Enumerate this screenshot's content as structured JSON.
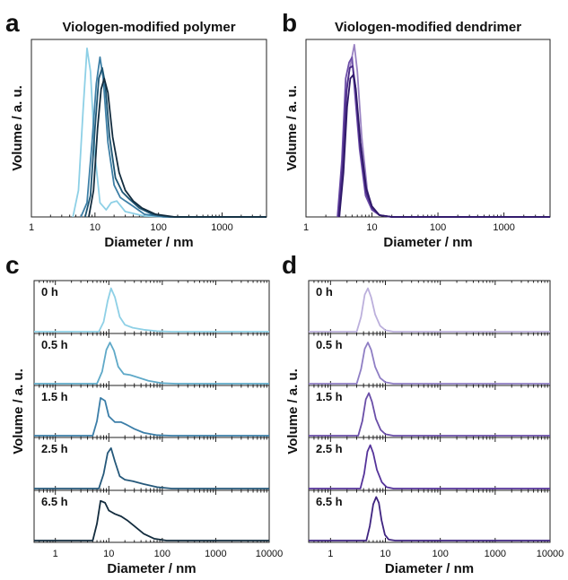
{
  "chart_data": [
    {
      "panel": "a",
      "type": "line",
      "title": "Viologen-modified polymer",
      "xlabel": "Diameter / nm",
      "ylabel": "Volume / a. u.",
      "xscale": "log",
      "xlim": [
        1,
        5000
      ],
      "xticks": [
        "1",
        "10",
        "100",
        "1000"
      ],
      "ylim": [
        0,
        1
      ],
      "series": [
        {
          "color": "#8ed0e6",
          "x": [
            4.5,
            5.5,
            6.5,
            7.5,
            8.5,
            10,
            12,
            15,
            18,
            22,
            30,
            60,
            200,
            5000
          ],
          "y": [
            0,
            0.15,
            0.6,
            0.95,
            0.82,
            0.35,
            0.08,
            0.04,
            0.08,
            0.09,
            0.03,
            0.005,
            0,
            0
          ]
        },
        {
          "color": "#3d7fa6",
          "x": [
            6,
            7.5,
            9,
            10.5,
            12,
            13.5,
            16,
            20,
            25,
            30,
            40,
            60,
            120,
            5000
          ],
          "y": [
            0,
            0.08,
            0.42,
            0.75,
            0.9,
            0.78,
            0.42,
            0.18,
            0.11,
            0.09,
            0.06,
            0.015,
            0,
            0
          ]
        },
        {
          "color": "#1e5573",
          "x": [
            7,
            8.5,
            10,
            11.5,
            13,
            14.5,
            17,
            21,
            27,
            35,
            50,
            80,
            150,
            5000
          ],
          "y": [
            0,
            0.12,
            0.5,
            0.78,
            0.84,
            0.75,
            0.45,
            0.22,
            0.14,
            0.1,
            0.05,
            0.015,
            0,
            0
          ]
        },
        {
          "color": "#132c3e",
          "x": [
            8,
            9.5,
            11,
            12.5,
            14,
            16,
            19,
            24,
            30,
            40,
            55,
            90,
            180,
            5000
          ],
          "y": [
            0,
            0.15,
            0.5,
            0.72,
            0.78,
            0.7,
            0.45,
            0.25,
            0.15,
            0.09,
            0.05,
            0.015,
            0,
            0
          ]
        }
      ]
    },
    {
      "panel": "b",
      "type": "line",
      "title": "Viologen-modified dendrimer",
      "xlabel": "Diameter / nm",
      "ylabel": "Volume / a. u.",
      "xscale": "log",
      "xlim": [
        1,
        5000
      ],
      "xticks": [
        "1",
        "10",
        "100",
        "1000"
      ],
      "ylim": [
        0,
        1
      ],
      "series": [
        {
          "color": "#9a83c3",
          "x": [
            3.2,
            3.7,
            4.2,
            4.8,
            5.4,
            6,
            7,
            8.5,
            10,
            13,
            20,
            5000
          ],
          "y": [
            0,
            0.35,
            0.75,
            0.87,
            0.97,
            0.82,
            0.45,
            0.15,
            0.05,
            0.01,
            0,
            0
          ]
        },
        {
          "color": "#6d4fa8",
          "x": [
            3,
            3.5,
            4,
            4.5,
            5,
            5.5,
            6.5,
            8,
            10,
            13,
            20,
            5000
          ],
          "y": [
            0,
            0.32,
            0.78,
            0.87,
            0.9,
            0.7,
            0.38,
            0.12,
            0.04,
            0.01,
            0,
            0
          ]
        },
        {
          "color": "#4a2b88",
          "x": [
            3.1,
            3.6,
            4.1,
            4.6,
            5.1,
            5.6,
            6.6,
            8.1,
            10,
            13,
            20,
            5000
          ],
          "y": [
            0,
            0.3,
            0.7,
            0.84,
            0.85,
            0.74,
            0.4,
            0.14,
            0.05,
            0.01,
            0,
            0
          ]
        },
        {
          "color": "#2e1868",
          "x": [
            3.2,
            3.7,
            4.2,
            4.7,
            5.2,
            5.7,
            6.7,
            8.2,
            10,
            13,
            20,
            5000
          ],
          "y": [
            0,
            0.25,
            0.62,
            0.78,
            0.8,
            0.72,
            0.42,
            0.16,
            0.06,
            0.01,
            0,
            0
          ]
        }
      ]
    },
    {
      "panel": "c",
      "type": "line",
      "xlabel": "Diameter / nm",
      "ylabel": "Volume / a. u.",
      "xscale": "log",
      "xlim": [
        0.4,
        10000
      ],
      "xticks": [
        "1",
        "10",
        "100",
        "1000",
        "10000"
      ],
      "ylim": [
        0,
        1
      ],
      "series": [
        {
          "name": "0 h",
          "color": "#8ed0e6",
          "x": [
            0.4,
            6.5,
            8,
            9.5,
            11,
            13,
            16,
            20,
            28,
            45,
            80,
            150,
            10000
          ],
          "y": [
            0,
            0,
            0.2,
            0.62,
            0.88,
            0.7,
            0.3,
            0.14,
            0.08,
            0.04,
            0.01,
            0,
            0
          ]
        },
        {
          "name": "0.5 h",
          "color": "#5fa9c8",
          "x": [
            0.4,
            6,
            7.5,
            9,
            10.5,
            12.5,
            15,
            19,
            25,
            35,
            55,
            100,
            180,
            10000
          ],
          "y": [
            0,
            0,
            0.25,
            0.7,
            0.85,
            0.68,
            0.35,
            0.2,
            0.18,
            0.13,
            0.06,
            0.01,
            0,
            0
          ]
        },
        {
          "name": "1.5 h",
          "color": "#3b7ea8",
          "x": [
            0.4,
            5,
            6,
            7,
            8.5,
            10,
            13,
            17,
            22,
            30,
            45,
            80,
            150,
            10000
          ],
          "y": [
            0,
            0,
            0.3,
            0.78,
            0.72,
            0.4,
            0.28,
            0.28,
            0.22,
            0.14,
            0.06,
            0.01,
            0,
            0
          ]
        },
        {
          "name": "2.5 h",
          "color": "#25587a",
          "x": [
            0.4,
            6.5,
            8,
            9.5,
            11,
            13,
            16,
            20,
            28,
            45,
            80,
            150,
            10000
          ],
          "y": [
            0,
            0,
            0.3,
            0.72,
            0.82,
            0.55,
            0.25,
            0.18,
            0.15,
            0.09,
            0.03,
            0,
            0
          ]
        },
        {
          "name": "6.5 h",
          "color": "#132c3e",
          "x": [
            0.4,
            5,
            6,
            7,
            8.5,
            10,
            13,
            17,
            22,
            30,
            45,
            70,
            120,
            10000
          ],
          "y": [
            0,
            0,
            0.35,
            0.82,
            0.78,
            0.62,
            0.55,
            0.5,
            0.42,
            0.3,
            0.14,
            0.04,
            0,
            0
          ]
        }
      ]
    },
    {
      "panel": "d",
      "type": "line",
      "xlabel": "Diameter / nm",
      "ylabel": "Volume / a. u.",
      "xscale": "log",
      "xlim": [
        0.4,
        10000
      ],
      "xticks": [
        "1",
        "10",
        "100",
        "1000",
        "10000"
      ],
      "ylim": [
        0,
        1
      ],
      "series": [
        {
          "name": "0 h",
          "color": "#bcb0dc",
          "x": [
            0.4,
            3,
            3.6,
            4.2,
            4.8,
            5.5,
            6.5,
            8,
            10,
            14,
            10000
          ],
          "y": [
            0,
            0,
            0.3,
            0.75,
            0.88,
            0.7,
            0.35,
            0.12,
            0.03,
            0,
            0
          ]
        },
        {
          "name": "0.5 h",
          "color": "#8f7ec4",
          "x": [
            0.4,
            3,
            3.6,
            4.2,
            4.8,
            5.5,
            6.5,
            8,
            10,
            14,
            10000
          ],
          "y": [
            0,
            0,
            0.3,
            0.72,
            0.85,
            0.7,
            0.35,
            0.12,
            0.03,
            0,
            0
          ]
        },
        {
          "name": "1.5 h",
          "color": "#6a4ea8",
          "x": [
            0.4,
            3.2,
            3.8,
            4.4,
            5,
            5.7,
            6.7,
            8.2,
            10,
            14,
            10000
          ],
          "y": [
            0,
            0,
            0.3,
            0.75,
            0.88,
            0.7,
            0.35,
            0.12,
            0.03,
            0,
            0
          ]
        },
        {
          "name": "2.5 h",
          "color": "#55339a",
          "x": [
            0.4,
            3.5,
            4.1,
            4.7,
            5.3,
            6,
            7,
            8.6,
            10.5,
            14,
            10000
          ],
          "y": [
            0,
            0,
            0.3,
            0.75,
            0.88,
            0.72,
            0.38,
            0.13,
            0.03,
            0,
            0
          ]
        },
        {
          "name": "6.5 h",
          "color": "#3f2480",
          "x": [
            0.4,
            4.5,
            5.2,
            6,
            6.8,
            7.6,
            8.5,
            9.8,
            11.5,
            15,
            10000
          ],
          "y": [
            0,
            0,
            0.3,
            0.75,
            0.9,
            0.78,
            0.42,
            0.12,
            0.02,
            0,
            0
          ]
        }
      ]
    }
  ]
}
